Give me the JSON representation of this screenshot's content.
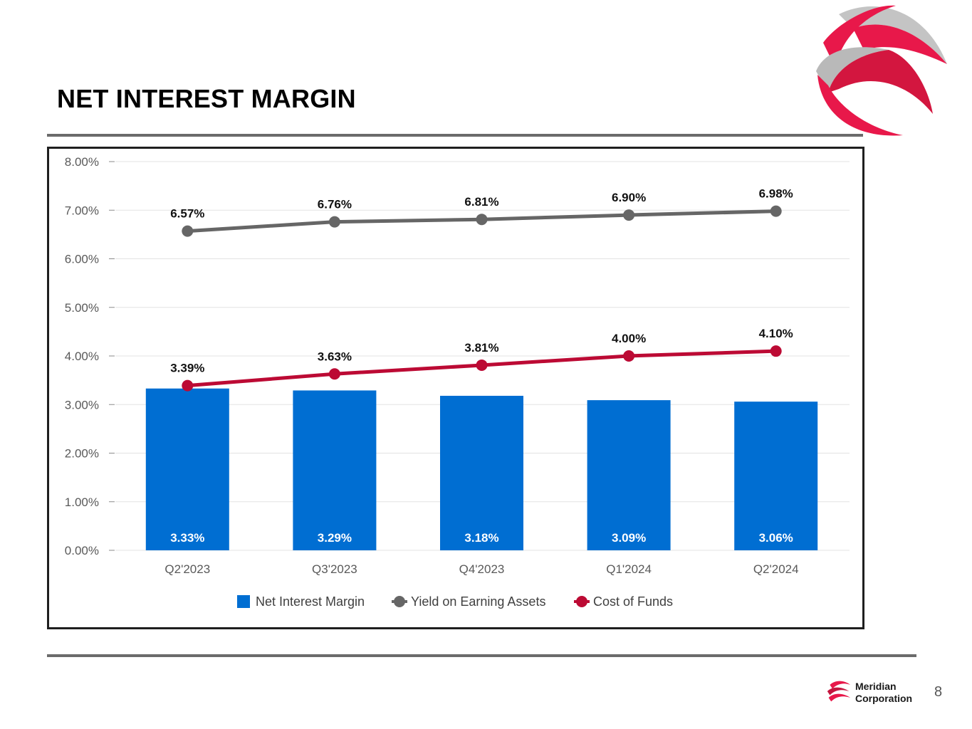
{
  "slide": {
    "title": "NET INTEREST MARGIN",
    "brand_line1": "Meridian",
    "brand_line2": "Corporation",
    "page_number": "8"
  },
  "colors": {
    "bar": "#006ed2",
    "yield_line": "#666666",
    "cost_line": "#bc0a34",
    "logo_red": "#e8184a",
    "logo_grey": "#b9b9b9"
  },
  "chart_data": {
    "type": "bar",
    "title": "",
    "categories": [
      "Q2'2023",
      "Q3'2023",
      "Q4'2023",
      "Q1'2024",
      "Q2'2024"
    ],
    "ylim": [
      0,
      8
    ],
    "yticks": [
      "0.00%",
      "1.00%",
      "2.00%",
      "3.00%",
      "4.00%",
      "5.00%",
      "6.00%",
      "7.00%",
      "8.00%"
    ],
    "grid": true,
    "legend_position": "bottom",
    "series": [
      {
        "name": "Net Interest Margin",
        "kind": "bar",
        "values": [
          3.33,
          3.29,
          3.18,
          3.09,
          3.06
        ],
        "labels": [
          "3.33%",
          "3.29%",
          "3.18%",
          "3.09%",
          "3.06%"
        ]
      },
      {
        "name": "Yield on Earning Assets",
        "kind": "line",
        "values": [
          6.57,
          6.76,
          6.81,
          6.9,
          6.98
        ],
        "labels": [
          "6.57%",
          "6.76%",
          "6.81%",
          "6.90%",
          "6.98%"
        ]
      },
      {
        "name": "Cost of Funds",
        "kind": "line",
        "values": [
          3.39,
          3.63,
          3.81,
          4.0,
          4.1
        ],
        "labels": [
          "3.39%",
          "3.63%",
          "3.81%",
          "4.00%",
          "4.10%"
        ]
      }
    ]
  }
}
